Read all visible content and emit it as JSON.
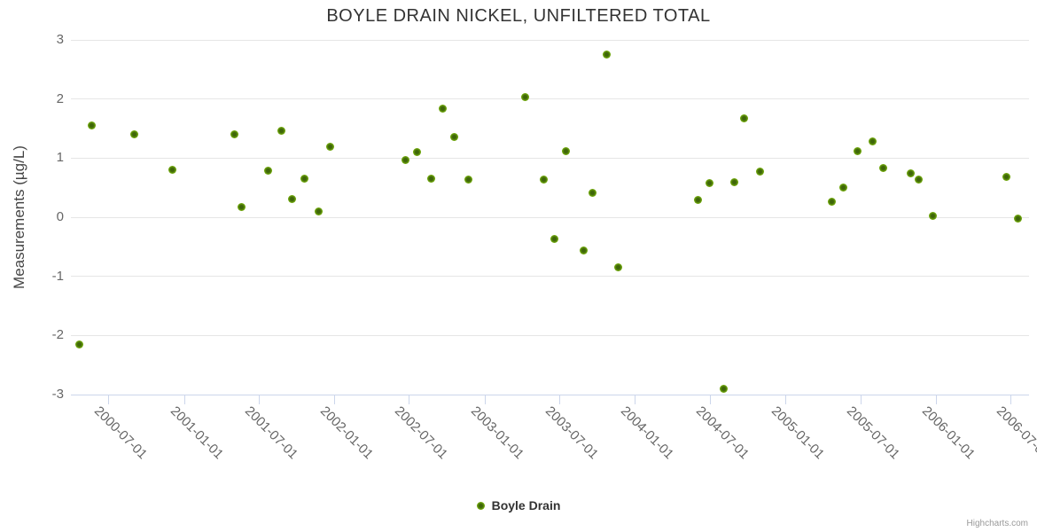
{
  "chart": {
    "title": "BOYLE DRAIN NICKEL, UNFILTERED TOTAL",
    "y_axis_title": "Measurements (µg/L)",
    "legend": {
      "label": "Boyle Drain",
      "marker_icon": "circle-marker-icon"
    },
    "credits": "Highcharts.com",
    "colors": {
      "point": "#7ab40e",
      "point_center": "#3e6609",
      "grid_line": "#e6e6e6",
      "axis_line": "#ccd6eb",
      "label_text": "#666666",
      "title_text": "#333333"
    }
  },
  "chart_data": {
    "type": "scatter",
    "title": "BOYLE DRAIN NICKEL, UNFILTERED TOTAL",
    "xlabel": "",
    "ylabel": "Measurements (µg/L)",
    "ylim": [
      -3,
      3
    ],
    "xlim": [
      "2000-04-01",
      "2006-08-15"
    ],
    "grid": true,
    "legend_position": "bottom-center",
    "y_ticks": [
      3,
      2,
      1,
      0,
      -1,
      -2,
      -3
    ],
    "x_ticks": [
      "2000-07-01",
      "2001-01-01",
      "2001-07-01",
      "2002-01-01",
      "2002-07-01",
      "2003-01-01",
      "2003-07-01",
      "2004-01-01",
      "2004-07-01",
      "2005-01-01",
      "2005-07-01",
      "2006-01-01",
      "2006-07-01"
    ],
    "series": [
      {
        "name": "Boyle Drain",
        "points": [
          {
            "date": "2000-04-22",
            "value": -2.15
          },
          {
            "date": "2000-05-22",
            "value": 1.56
          },
          {
            "date": "2000-09-01",
            "value": 1.4
          },
          {
            "date": "2000-12-04",
            "value": 0.8
          },
          {
            "date": "2001-05-04",
            "value": 1.4
          },
          {
            "date": "2001-05-21",
            "value": 0.18
          },
          {
            "date": "2001-07-25",
            "value": 0.79
          },
          {
            "date": "2001-08-26",
            "value": 1.46
          },
          {
            "date": "2001-09-21",
            "value": 0.31
          },
          {
            "date": "2001-10-21",
            "value": 0.66
          },
          {
            "date": "2001-11-24",
            "value": 0.1
          },
          {
            "date": "2001-12-22",
            "value": 1.19
          },
          {
            "date": "2002-06-23",
            "value": 0.97
          },
          {
            "date": "2002-07-20",
            "value": 1.1
          },
          {
            "date": "2002-08-25",
            "value": 0.66
          },
          {
            "date": "2002-09-22",
            "value": 1.84
          },
          {
            "date": "2002-10-20",
            "value": 1.36
          },
          {
            "date": "2002-11-23",
            "value": 0.64
          },
          {
            "date": "2003-04-10",
            "value": 2.03
          },
          {
            "date": "2003-05-25",
            "value": 0.64
          },
          {
            "date": "2003-06-20",
            "value": -0.37
          },
          {
            "date": "2003-07-18",
            "value": 1.12
          },
          {
            "date": "2003-08-30",
            "value": -0.56
          },
          {
            "date": "2003-09-19",
            "value": 0.41
          },
          {
            "date": "2003-10-25",
            "value": 2.76
          },
          {
            "date": "2003-11-22",
            "value": -0.84
          },
          {
            "date": "2004-06-01",
            "value": 0.3
          },
          {
            "date": "2004-07-01",
            "value": 0.58
          },
          {
            "date": "2004-08-04",
            "value": -2.9
          },
          {
            "date": "2004-08-30",
            "value": 0.6
          },
          {
            "date": "2004-09-23",
            "value": 1.67
          },
          {
            "date": "2004-10-30",
            "value": 0.77
          },
          {
            "date": "2005-04-22",
            "value": 0.26
          },
          {
            "date": "2005-05-22",
            "value": 0.5
          },
          {
            "date": "2005-06-25",
            "value": 1.12
          },
          {
            "date": "2005-08-01",
            "value": 1.29
          },
          {
            "date": "2005-08-25",
            "value": 0.84
          },
          {
            "date": "2005-11-01",
            "value": 0.74
          },
          {
            "date": "2005-11-20",
            "value": 0.64
          },
          {
            "date": "2005-12-25",
            "value": 0.02
          },
          {
            "date": "2006-06-22",
            "value": 0.68
          },
          {
            "date": "2006-07-20",
            "value": -0.02
          }
        ]
      }
    ]
  }
}
